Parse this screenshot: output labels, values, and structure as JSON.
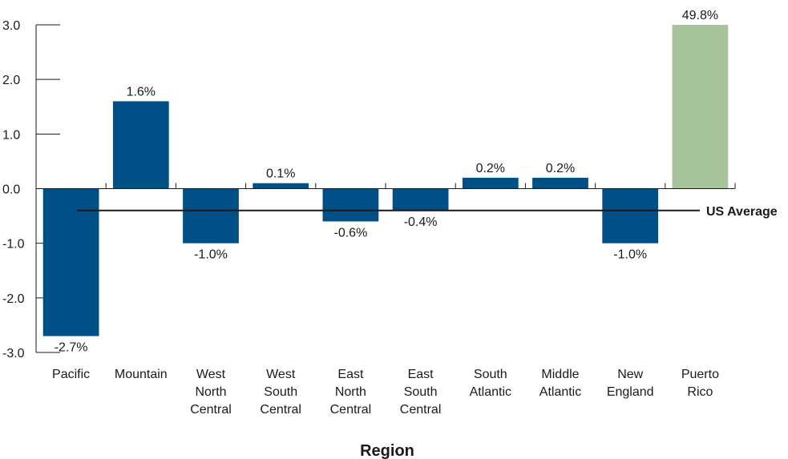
{
  "chart_data": {
    "type": "bar",
    "categories": [
      [
        "Pacific"
      ],
      [
        "Mountain"
      ],
      [
        "West",
        "North",
        "Central"
      ],
      [
        "West",
        "South",
        "Central"
      ],
      [
        "East",
        "North",
        "Central"
      ],
      [
        "East",
        "South",
        "Central"
      ],
      [
        "South",
        "Atlantic"
      ],
      [
        "Middle",
        "Atlantic"
      ],
      [
        "New",
        "England"
      ],
      [
        "Puerto",
        "Rico"
      ]
    ],
    "values": [
      -2.7,
      1.6,
      -1.0,
      0.1,
      -0.6,
      -0.4,
      0.2,
      0.2,
      -1.0,
      49.8
    ],
    "data_labels": [
      "-2.7%",
      "1.6%",
      "-1.0%",
      "0.1%",
      "-0.6%",
      "-0.4%",
      "0.2%",
      "0.2%",
      "-1.0%",
      "49.8%"
    ],
    "bar_colors": [
      "#004f86",
      "#004f86",
      "#004f86",
      "#004f86",
      "#004f86",
      "#004f86",
      "#004f86",
      "#004f86",
      "#004f86",
      "#a8c49a"
    ],
    "clipped_at_axis_max": [
      false,
      false,
      false,
      false,
      false,
      false,
      false,
      false,
      false,
      true
    ],
    "ylim": [
      -3.0,
      3.0
    ],
    "yticks": [
      3.0,
      2.0,
      1.0,
      0.0,
      -1.0,
      -2.0,
      -3.0
    ],
    "ytick_labels": [
      "3.0",
      "2.0",
      "1.0",
      "0.0",
      "-1.0",
      "-2.0",
      "-3.0"
    ],
    "reference_line": {
      "label": "US Average",
      "value": -0.4
    },
    "xlabel": "Region",
    "ylabel": "",
    "title": "",
    "grid": false,
    "legend": false
  },
  "labels": {
    "xlabel": "Region",
    "reference_line": "US Average"
  }
}
